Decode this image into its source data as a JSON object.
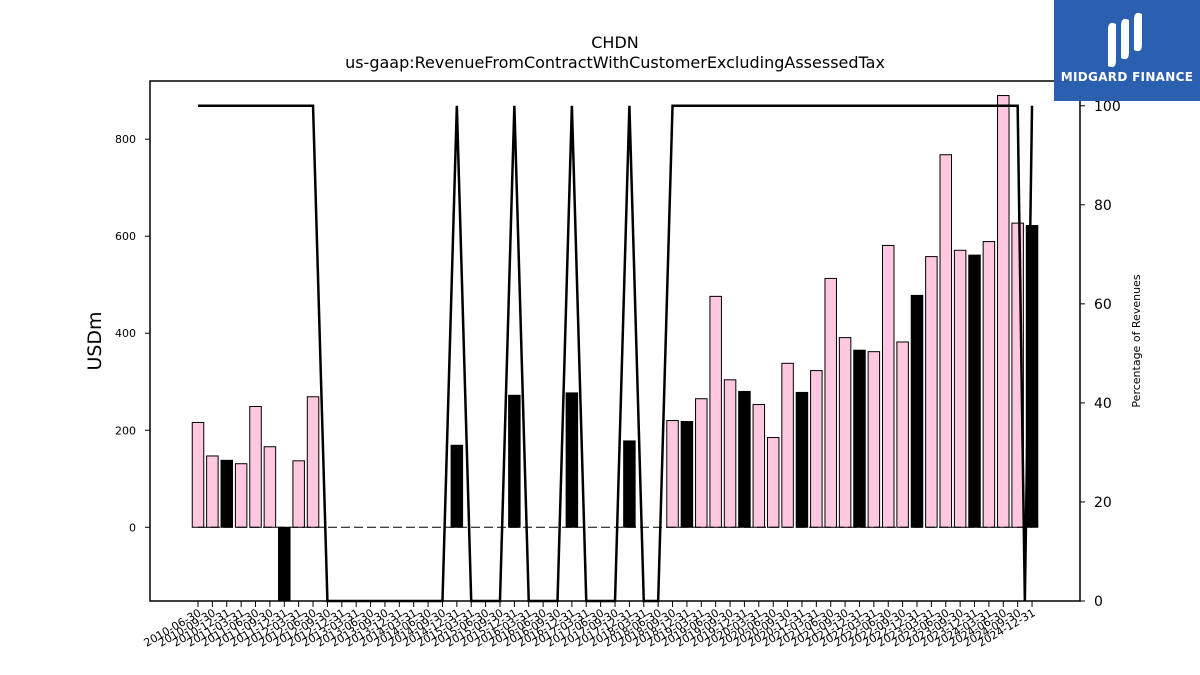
{
  "brand": {
    "name": "MIDGARD FINANCE"
  },
  "chart_data": {
    "type": "bar",
    "title": "CHDN",
    "subtitle": "us-gaap:RevenueFromContractWithCustomerExcludingAssessedTax",
    "ylabel": "USDm",
    "y2label": "Percentage of Revenues",
    "ylim": [
      -152,
      920
    ],
    "y2lim": [
      0,
      105
    ],
    "yticks": [
      0,
      200,
      400,
      600,
      800
    ],
    "y2ticks": [
      0,
      20,
      40,
      60,
      80,
      100
    ],
    "categories": [
      "2010-06-30",
      "2010-09-30",
      "2010-12-31",
      "2011-03-31",
      "2011-06-30",
      "2011-09-30",
      "2011-12-31",
      "2012-03-31",
      "2012-06-30",
      "2012-09-30",
      "2012-12-31",
      "2013-03-31",
      "2013-06-30",
      "2013-09-30",
      "2013-12-31",
      "2014-03-31",
      "2014-06-30",
      "2014-09-30",
      "2014-12-31",
      "2015-03-31",
      "2015-06-30",
      "2015-09-30",
      "2015-12-31",
      "2016-03-31",
      "2016-06-30",
      "2016-09-30",
      "2016-12-31",
      "2017-03-31",
      "2017-06-30",
      "2017-09-30",
      "2017-12-31",
      "2018-03-31",
      "2018-06-30",
      "2018-09-30",
      "2018-12-31",
      "2019-03-31",
      "2019-06-30",
      "2019-09-30",
      "2019-12-31",
      "2020-03-31",
      "2020-06-30",
      "2020-09-30",
      "2020-12-31",
      "2021-03-31",
      "2021-06-30",
      "2021-09-30",
      "2021-12-31",
      "2022-03-31",
      "2022-06-30",
      "2022-09-30",
      "2022-12-31",
      "2023-03-31",
      "2023-06-30",
      "2023-09-30",
      "2023-12-31",
      "2024-03-31",
      "2024-06-30",
      "2024-09-30"
    ],
    "series": [
      {
        "values": [
          216,
          147,
          138,
          131,
          249,
          166,
          -155,
          137,
          269,
          0,
          0,
          0,
          0,
          0,
          0,
          0,
          0,
          0,
          169,
          0,
          0,
          0,
          272,
          0,
          0,
          0,
          277,
          0,
          0,
          0,
          178,
          0,
          0,
          220,
          218,
          265,
          476,
          304,
          280,
          253,
          185,
          338,
          278,
          323,
          513,
          391,
          365,
          362,
          581,
          382,
          478,
          558,
          768,
          571,
          561,
          589,
          890,
          627
        ],
        "colors": [
          "pink",
          "pink",
          "black",
          "pink",
          "pink",
          "pink",
          "black",
          "pink",
          "pink",
          "none",
          "none",
          "none",
          "none",
          "none",
          "none",
          "none",
          "none",
          "none",
          "black",
          "none",
          "none",
          "none",
          "black",
          "none",
          "none",
          "none",
          "black",
          "none",
          "none",
          "none",
          "black",
          "none",
          "none",
          "pink",
          "black",
          "pink",
          "pink",
          "pink",
          "black",
          "pink",
          "pink",
          "pink",
          "black",
          "pink",
          "pink",
          "pink",
          "black",
          "pink",
          "pink",
          "pink",
          "black",
          "pink",
          "pink",
          "pink",
          "black",
          "pink",
          "pink",
          "pink"
        ]
      },
      {
        "axis": "right",
        "type": "line",
        "values": [
          100,
          100,
          100,
          100,
          100,
          100,
          100,
          100,
          100,
          0,
          0,
          0,
          0,
          0,
          0,
          0,
          0,
          0,
          100,
          0,
          0,
          0,
          100,
          0,
          0,
          0,
          100,
          0,
          0,
          0,
          100,
          0,
          0,
          100,
          100,
          100,
          100,
          100,
          100,
          100,
          100,
          100,
          100,
          100,
          100,
          100,
          100,
          100,
          100,
          100,
          100,
          100,
          100,
          100,
          100,
          100,
          100,
          100
        ],
        "extra_points": [
          [
            57.5,
            0
          ]
        ]
      }
    ],
    "last_bar": {
      "value": 622,
      "color": "black"
    },
    "last_tick_label": "2024-12-31",
    "colors": {
      "pink": "#ffc8e0",
      "black": "#000000",
      "axis": "#000000"
    },
    "grid": false
  }
}
